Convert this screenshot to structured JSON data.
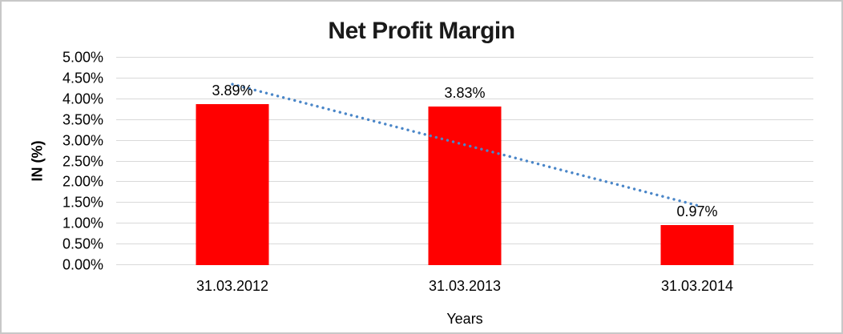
{
  "chart": {
    "title": "Net Profit Margin",
    "x_axis_title": "Years",
    "y_axis_title": "IN (%)"
  },
  "chart_data": {
    "type": "bar",
    "title": "Net Profit Margin",
    "categories": [
      "31.03.2012",
      "31.03.2013",
      "31.03.2014"
    ],
    "series": [
      {
        "name": "Net Profit Margin",
        "color": "#ff0000",
        "values": [
          3.89,
          3.83,
          0.97
        ],
        "data_labels": [
          "3.89%",
          "3.83%",
          "0.97%"
        ]
      }
    ],
    "xlabel": "Years",
    "ylabel": "IN (%)",
    "ylim": [
      0,
      5
    ],
    "y_tick_step": 0.5,
    "y_tick_labels": [
      "0.00%",
      "0.50%",
      "1.00%",
      "1.50%",
      "2.00%",
      "2.50%",
      "3.00%",
      "3.50%",
      "4.00%",
      "4.50%",
      "5.00%"
    ],
    "grid": true,
    "gridline_color": "#d9d9d9",
    "legend": "none",
    "trendline": {
      "type": "linear",
      "style": "dotted",
      "color": "#4a86c8",
      "start_value": 4.36,
      "end_value": 1.44
    }
  },
  "colors": {
    "bar": "#ff0000",
    "trendline": "#4a86c8",
    "gridline": "#d9d9d9",
    "border": "#c8c8c8",
    "title_text": "#1a1a1a",
    "axis_text": "#000000",
    "background": "#ffffff"
  }
}
